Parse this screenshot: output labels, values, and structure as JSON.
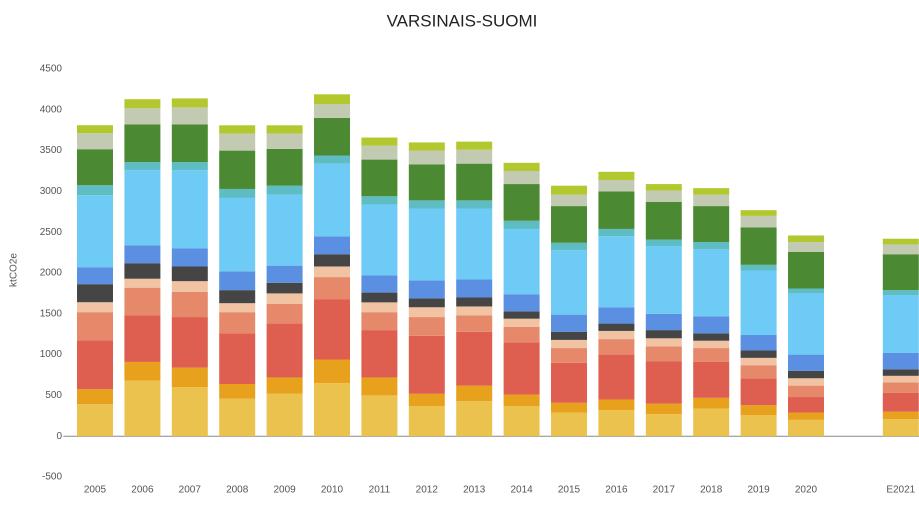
{
  "chart_data": {
    "type": "stacked_bar",
    "title": "VARSINAIS-SUOMI",
    "y_label": "ktCO2e",
    "categories": [
      "2005",
      "2006",
      "2007",
      "2008",
      "2009",
      "2010",
      "2011",
      "2012",
      "2013",
      "2014",
      "2015",
      "2016",
      "2017",
      "2018",
      "2019",
      "2020",
      null,
      "E2021"
    ],
    "series": [
      {
        "color": "#ecc24e",
        "values": [
          392,
          680,
          600,
          460,
          520,
          650,
          500,
          370,
          430,
          370,
          290,
          320,
          270,
          340,
          260,
          200,
          null,
          210
        ]
      },
      {
        "color": "#e8a11c",
        "values": [
          184,
          230,
          240,
          180,
          200,
          290,
          220,
          150,
          190,
          140,
          120,
          130,
          130,
          130,
          120,
          90,
          null,
          90
        ]
      },
      {
        "color": "#de5f4f",
        "values": [
          600,
          570,
          620,
          620,
          660,
          740,
          580,
          710,
          660,
          640,
          490,
          550,
          520,
          440,
          330,
          190,
          null,
          230
        ]
      },
      {
        "color": "#e5896a",
        "values": [
          344,
          340,
          310,
          260,
          240,
          270,
          220,
          230,
          200,
          190,
          180,
          190,
          180,
          170,
          160,
          140,
          null,
          130
        ]
      },
      {
        "color": "#f1c3a2",
        "values": [
          122,
          110,
          130,
          110,
          130,
          130,
          120,
          120,
          110,
          100,
          100,
          100,
          100,
          90,
          90,
          90,
          null,
          80
        ]
      },
      {
        "color": "#454545",
        "values": [
          221,
          190,
          180,
          160,
          130,
          150,
          120,
          110,
          110,
          90,
          100,
          90,
          100,
          90,
          90,
          90,
          null,
          80
        ]
      },
      {
        "color": "#5b8fe2",
        "values": [
          208,
          220,
          220,
          230,
          210,
          220,
          210,
          220,
          220,
          210,
          210,
          200,
          200,
          210,
          190,
          200,
          null,
          200
        ]
      },
      {
        "color": "#6ecbf6",
        "values": [
          882,
          920,
          960,
          900,
          870,
          890,
          870,
          880,
          870,
          800,
          790,
          870,
          830,
          820,
          790,
          750,
          null,
          710
        ]
      },
      {
        "color": "#5dbdc2",
        "values": [
          123,
          100,
          100,
          110,
          110,
          100,
          100,
          100,
          100,
          100,
          90,
          90,
          80,
          90,
          70,
          60,
          null,
          60
        ]
      },
      {
        "color": "#4b8a32",
        "values": [
          441,
          460,
          460,
          470,
          450,
          460,
          450,
          440,
          450,
          450,
          450,
          460,
          460,
          440,
          460,
          450,
          null,
          440
        ]
      },
      {
        "color": "#c3cab2",
        "values": [
          196,
          200,
          210,
          210,
          190,
          170,
          170,
          170,
          170,
          160,
          140,
          140,
          140,
          140,
          140,
          120,
          null,
          120
        ]
      },
      {
        "color": "#b2c82e",
        "values": [
          98,
          110,
          110,
          100,
          100,
          120,
          100,
          100,
          100,
          100,
          110,
          100,
          80,
          80,
          70,
          80,
          null,
          70
        ]
      }
    ],
    "ylim": [
      -500,
      4500
    ],
    "yticks": [
      -500,
      0,
      500,
      1000,
      1500,
      2000,
      2500,
      3000,
      3500,
      4000,
      4500
    ],
    "grid": false
  }
}
